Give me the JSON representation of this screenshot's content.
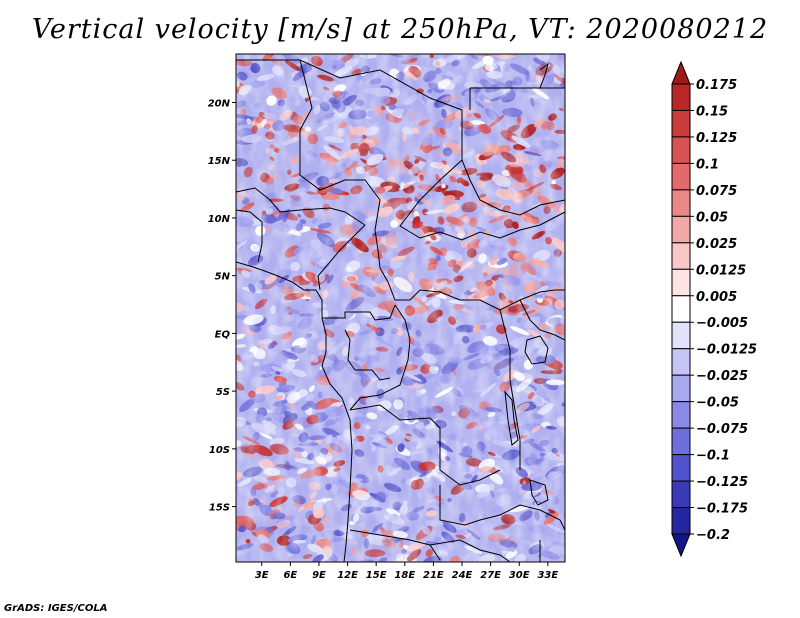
{
  "title": "Vertical velocity [m/s] at 250hPa, VT: 2020080212",
  "credit": "GrADS: IGES/COLA",
  "map": {
    "region": "Central Africa",
    "variable": "Vertical velocity",
    "units": "m/s",
    "level": "250hPa",
    "valid_time": "2020080212",
    "lat_ticks": [
      "20N",
      "15N",
      "10N",
      "5N",
      "EQ",
      "5S",
      "10S",
      "15S"
    ],
    "lat_values": [
      20,
      15,
      10,
      5,
      0,
      -5,
      -10,
      -15
    ],
    "lon_ticks": [
      "3E",
      "6E",
      "9E",
      "12E",
      "15E",
      "18E",
      "21E",
      "24E",
      "27E",
      "30E",
      "33E"
    ],
    "lon_values": [
      3,
      6,
      9,
      12,
      15,
      18,
      21,
      24,
      27,
      30,
      33
    ],
    "lon_range": [
      0.3,
      34.8
    ],
    "lat_range": [
      -19.8,
      24.2
    ]
  },
  "colorbar": {
    "labels": [
      "0.175",
      "0.15",
      "0.125",
      "0.1",
      "0.075",
      "0.05",
      "0.025",
      "0.0125",
      "0.005",
      "-0.005",
      "-0.0125",
      "-0.025",
      "-0.05",
      "-0.075",
      "-0.1",
      "-0.125",
      "-0.175",
      "-0.2"
    ],
    "colors": [
      "#a01818",
      "#b82828",
      "#c83c3c",
      "#d85252",
      "#e26a6a",
      "#ea8888",
      "#f2a8a8",
      "#f8c8c8",
      "#fce4e4",
      "#ffffff",
      "#e2e2fa",
      "#c6c6f4",
      "#a8a8ee",
      "#8a8ae6",
      "#6e6ede",
      "#5252cc",
      "#3a3ab8",
      "#2626a0",
      "#14148a"
    ]
  },
  "colors": {
    "positive_strong": "#b02020",
    "positive_weak": "#f4b0b0",
    "negative_weak": "#c0c0f4",
    "negative_strong": "#3030b0",
    "neutral": "#ffffff"
  }
}
